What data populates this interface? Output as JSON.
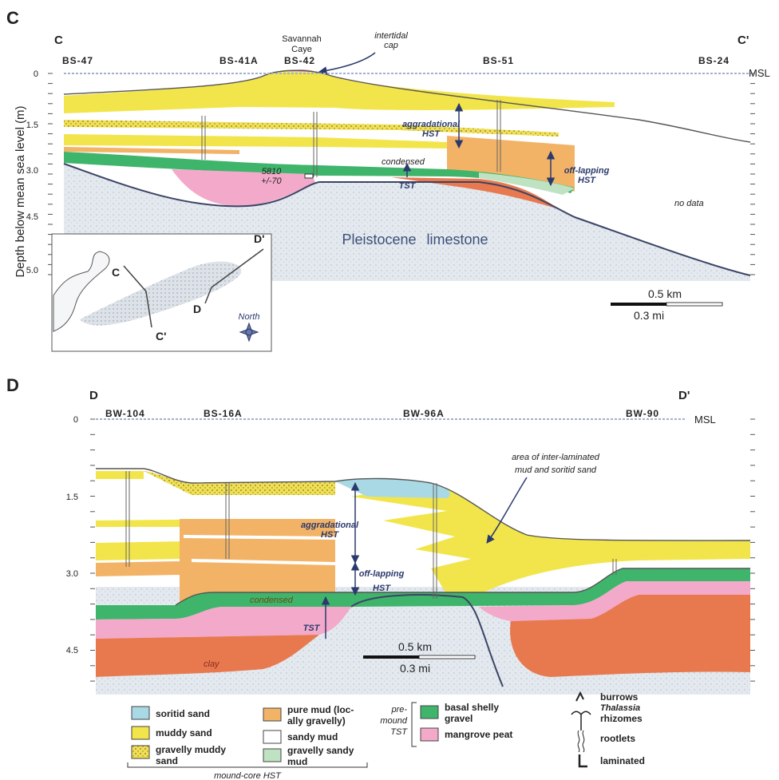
{
  "panel_c": {
    "label": "C",
    "left_end": "C",
    "right_end": "C'",
    "wells": [
      "BS-47",
      "BS-41A",
      "BS-42",
      "BS-51",
      "BS-24"
    ],
    "site_name": [
      "Savannah",
      "Caye"
    ],
    "cap_note": [
      "intertidal",
      "cap"
    ],
    "msl": "MSL",
    "depth_labels": [
      "0",
      "1.5",
      "3.0",
      "4.5",
      "5.0"
    ],
    "y_axis_title": "Depth below mean sea level (m)",
    "aggradational": [
      "aggradational",
      "HST"
    ],
    "condensed": "condensed",
    "offlapping": [
      "off-lapping",
      "HST"
    ],
    "tst": "TST",
    "age": [
      "5810",
      "+/-70"
    ],
    "no_data": "no data",
    "basement": "Pleistocene limestone",
    "scale": [
      "0.5 km",
      "0.3 mi"
    ],
    "inset": {
      "c": "C",
      "c_prime": "C'",
      "d": "D",
      "d_prime": "D'",
      "north": "North"
    }
  },
  "panel_d": {
    "label": "D",
    "left_end": "D",
    "right_end": "D'",
    "wells": [
      "BW-104",
      "BS-16A",
      "BW-96A",
      "BW-90"
    ],
    "msl": "MSL",
    "depth_labels": [
      "0",
      "1.5",
      "3.0",
      "4.5"
    ],
    "interlaminated": [
      "area of inter-laminated",
      "mud and soritid sand"
    ],
    "aggradational": [
      "aggradational",
      "HST"
    ],
    "offlapping": [
      "off-lapping",
      "HST"
    ],
    "condensed": "condensed",
    "tst": "TST",
    "clay": "clay",
    "scale": [
      "0.5 km",
      "0.3 mi"
    ]
  },
  "legend": {
    "soritid_sand": "soritid sand",
    "muddy_sand": "muddy sand",
    "gravelly_muddy_sand": [
      "gravelly muddy",
      "sand"
    ],
    "pure_mud": [
      "pure mud (loc-",
      "ally gravelly)"
    ],
    "sandy_mud": "sandy mud",
    "gravelly_sandy_mud": [
      "gravelly sandy",
      "mud"
    ],
    "premound_tst": [
      "pre-",
      "mound",
      "TST"
    ],
    "basal_shelly_gravel": [
      "basal shelly",
      "gravel"
    ],
    "mangrove_peat": "mangrove peat",
    "burrows": "burrows",
    "thalassia": [
      "Thalassia",
      "rhizomes"
    ],
    "rootlets": "rootlets",
    "laminated": "laminated",
    "mound_core_hst": "mound-core HST"
  }
}
